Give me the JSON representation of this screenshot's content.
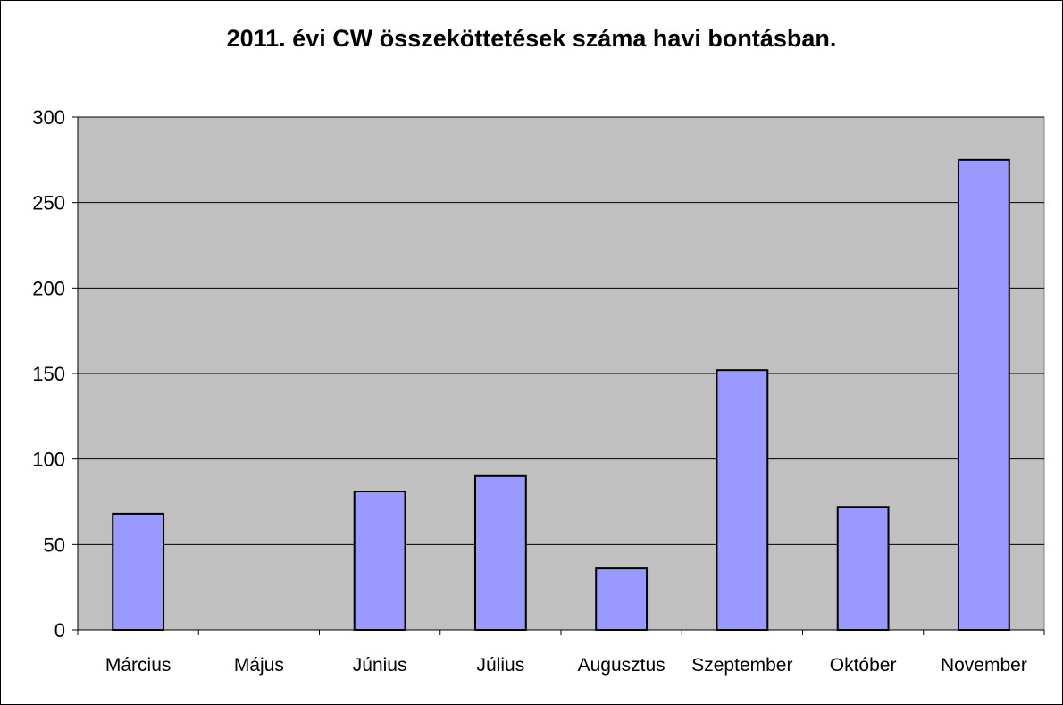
{
  "chart_data": {
    "type": "bar",
    "title": "2011. évi CW összeköttetések száma havi bontásban.",
    "xlabel": "",
    "ylabel": "",
    "categories": [
      "Március",
      "Május",
      "Június",
      "Július",
      "Augusztus",
      "Szeptember",
      "Október",
      "November"
    ],
    "values": [
      68,
      0,
      81,
      90,
      36,
      152,
      72,
      275
    ],
    "ylim": [
      0,
      300
    ],
    "yticks": [
      0,
      50,
      100,
      150,
      200,
      250,
      300
    ],
    "grid": true,
    "legend": "none",
    "colors": {
      "bar_fill": "#9999ff",
      "bar_stroke": "#000000",
      "plot_background": "#c0c0c0",
      "gridline": "#000000"
    }
  }
}
